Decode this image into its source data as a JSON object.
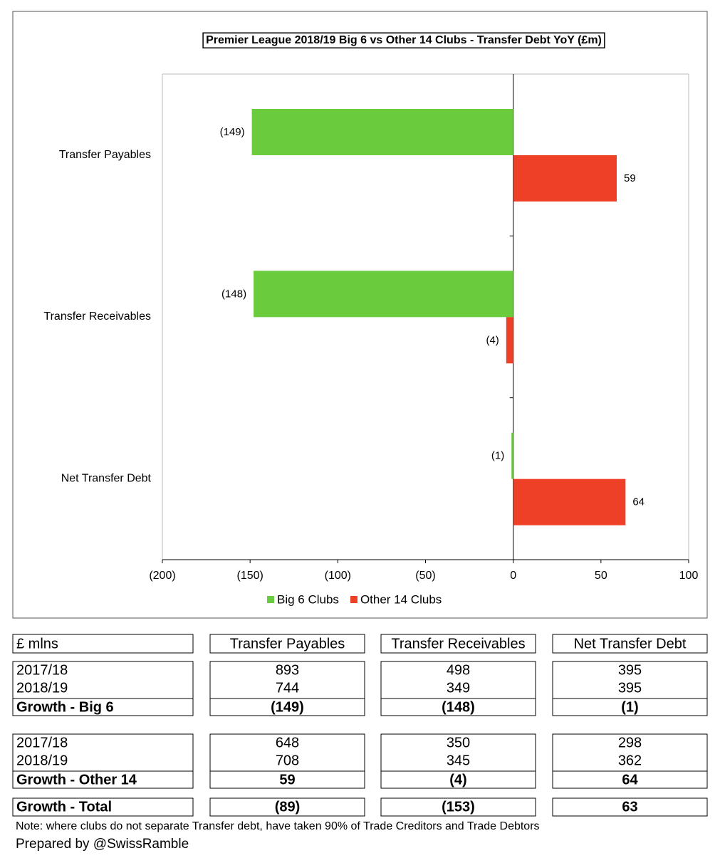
{
  "chart_data": {
    "type": "bar",
    "orientation": "horizontal",
    "title": "Premier League 2018/19 Big 6 vs Other 14 Clubs - Transfer Debt YoY (£m)",
    "categories": [
      "Transfer Payables",
      "Transfer Receivables",
      "Net Transfer Debt"
    ],
    "series": [
      {
        "name": "Big 6 Clubs",
        "color": "#6acc3c",
        "values": [
          -149,
          -148,
          -1
        ],
        "value_labels": [
          "(149)",
          "(148)",
          "(1)"
        ]
      },
      {
        "name": "Other 14 Clubs",
        "color": "#ee4027",
        "values": [
          59,
          -4,
          64
        ],
        "value_labels": [
          "59",
          "(4)",
          "64"
        ]
      }
    ],
    "xlim": [
      -200,
      100
    ],
    "xticks": [
      {
        "value": -200,
        "label": "(200)"
      },
      {
        "value": -150,
        "label": "(150)"
      },
      {
        "value": -100,
        "label": "(100)"
      },
      {
        "value": -50,
        "label": "(50)"
      },
      0,
      50,
      100
    ],
    "negative_color": "#e0302a",
    "legend": "bottom",
    "grid": false
  },
  "table": {
    "header": [
      "£ mlns",
      "Transfer Payables",
      "Transfer Receivables",
      "Net Transfer Debt"
    ],
    "groups": [
      {
        "rows": [
          [
            "2017/18",
            893,
            498,
            395
          ],
          [
            "2018/19",
            744,
            349,
            395
          ]
        ],
        "growth": [
          "Growth - Big 6",
          "(149)",
          "(148)",
          "(1)"
        ]
      },
      {
        "rows": [
          [
            "2017/18",
            648,
            350,
            298
          ],
          [
            "2018/19",
            708,
            345,
            362
          ]
        ],
        "growth": [
          "Growth - Other 14",
          59,
          "(4)",
          64
        ]
      }
    ],
    "total": [
      "Growth - Total",
      "(89)",
      "(153)",
      63
    ]
  },
  "note": "Note: where clubs do not separate Transfer debt, have taken 90% of Trade Creditors and Trade Debtors",
  "credit": "Prepared by @SwissRamble"
}
